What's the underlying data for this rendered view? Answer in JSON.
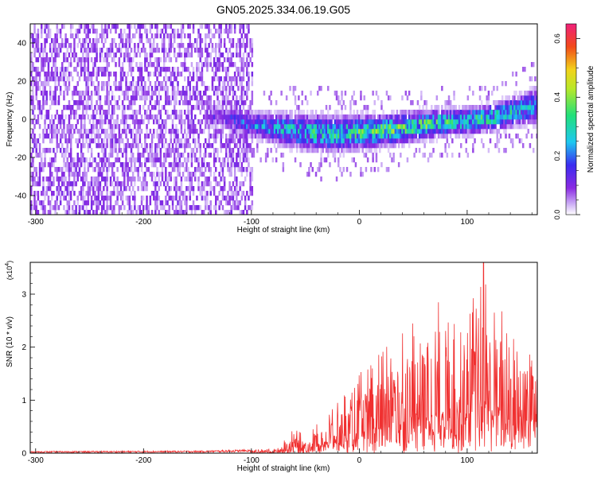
{
  "page_title": "GN05.2025.334.06.19.G05",
  "chart_data": [
    {
      "id": "spectrogram",
      "type": "heatmap",
      "title": "GN05.2025.334.06.19.G05",
      "xlabel": "Height of straight line (km)",
      "ylabel": "Frequency (Hz)",
      "xlim": [
        -305,
        165
      ],
      "ylim": [
        -50,
        50
      ],
      "xticks": [
        -300,
        -200,
        -100,
        0,
        100
      ],
      "yticks": [
        -40,
        -20,
        0,
        20,
        40
      ],
      "colorbar": {
        "label": "Normalized spectral amplitude",
        "range": [
          0.0,
          0.65
        ],
        "ticks": [
          "0.0",
          "0.2",
          "0.4",
          "0.6"
        ],
        "tick_values": [
          0.0,
          0.2,
          0.4,
          0.6
        ]
      },
      "background_noise": {
        "x_range": [
          -305,
          -100
        ],
        "level": 0.08
      },
      "ridge": {
        "x": [
          -130,
          -100,
          -75,
          -50,
          -25,
          0,
          25,
          50,
          75,
          100,
          125,
          150,
          165
        ],
        "y": [
          0,
          -4,
          -6,
          -8,
          -9,
          -8,
          -7,
          -5,
          -3,
          -2,
          0,
          4,
          6
        ],
        "width_hz": [
          10,
          12,
          14,
          16,
          16,
          15,
          14,
          13,
          12,
          12,
          12,
          14,
          16
        ],
        "peak_amplitude": [
          0.12,
          0.2,
          0.25,
          0.28,
          0.3,
          0.32,
          0.34,
          0.35,
          0.33,
          0.3,
          0.3,
          0.25,
          0.22
        ]
      }
    },
    {
      "id": "snr",
      "type": "line",
      "xlabel": "Height of straight line (km)",
      "ylabel": "SNR (10 * v/v)",
      "multiplier_label": "(x10",
      "multiplier_exp": "4",
      "multiplier_close": ")",
      "xlim": [
        -305,
        165
      ],
      "ylim": [
        0,
        3.6
      ],
      "xticks": [
        -300,
        -200,
        -100,
        0,
        100
      ],
      "yticks": [
        0,
        1,
        2,
        3
      ],
      "color": "#f03030",
      "envelope": {
        "x": [
          -305,
          -150,
          -100,
          -75,
          -60,
          -50,
          -25,
          0,
          25,
          50,
          75,
          100,
          115,
          125,
          150,
          165
        ],
        "y": [
          0.03,
          0.04,
          0.06,
          0.1,
          0.5,
          0.3,
          0.9,
          1.5,
          2.2,
          2.6,
          2.9,
          2.8,
          3.6,
          2.9,
          2.5,
          2.4
        ]
      },
      "max_point": {
        "x": 115,
        "y": 3.6
      }
    }
  ]
}
